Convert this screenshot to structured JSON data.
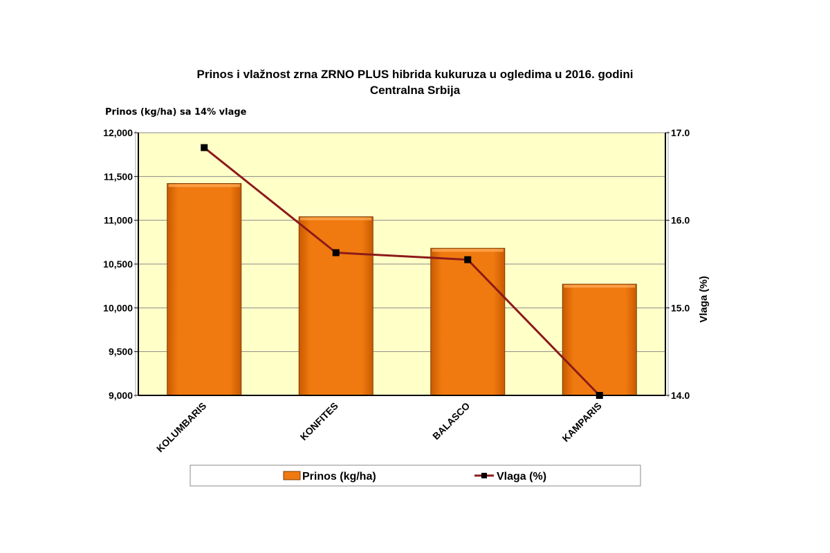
{
  "chart_data": {
    "type": "bar",
    "title": "Prinos i vlažnost zrna ZRNO PLUS hibrida kukuruza u ogledima u 2016. godini",
    "subtitle": "Centralna Srbija",
    "ylabel": "Prinos (kg/ha) sa 14% vlage",
    "y2label": "Vlaga (%)",
    "categories": [
      "KOLUMBARIS",
      "KONFITES",
      "BALASCO",
      "KAMPARIS"
    ],
    "ylim": [
      9000,
      12000
    ],
    "y_ticks": [
      "9,000",
      "9,500",
      "10,000",
      "10,500",
      "11,000",
      "11,500",
      "12,000"
    ],
    "y2lim": [
      14.0,
      17.0
    ],
    "y2_ticks": [
      "14.0",
      "15.0",
      "16.0",
      "17.0"
    ],
    "grid": true,
    "legend_position": "bottom",
    "series": [
      {
        "name": "Prinos (kg/ha)",
        "type": "bar",
        "axis": "left",
        "values": [
          11420,
          11040,
          10680,
          10270
        ],
        "color": "#f07a10"
      },
      {
        "name": "Vlaga (%)",
        "type": "line",
        "axis": "right",
        "values": [
          16.83,
          15.63,
          15.55,
          14.0
        ],
        "color": "#8b1a1a",
        "marker_color": "#000000"
      }
    ],
    "plot_background": "#ffffc8"
  }
}
